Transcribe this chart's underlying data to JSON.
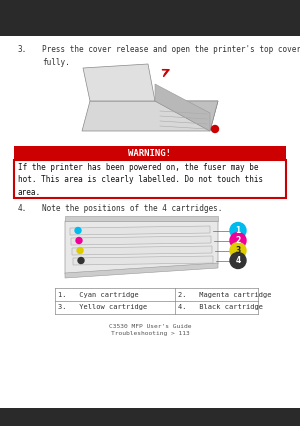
{
  "page_bg": "#c8c8c8",
  "content_bg": "#ffffff",
  "step3_label": "3.",
  "step3_text": "Press the cover release and open the printer's top cover\nfully.",
  "step4_label": "4.",
  "step4_text": "Note the positions of the 4 cartridges.",
  "warning_title": "WARNING!",
  "warning_bg": "#cc0000",
  "warning_text": "If the printer has been powered on, the fuser may be\nhot. This area is clearly labelled. Do not touch this\narea.",
  "warning_border_color": "#cc0000",
  "table_data": [
    [
      "1.   Cyan cartridge",
      "2.   Magenta cartridge"
    ],
    [
      "3.   Yellow cartridge",
      "4.   Black cartridge"
    ]
  ],
  "footer_line1": "C3530 MFP User's Guide",
  "footer_line2": "Troubleshooting > 113",
  "cartridge_colors": [
    "#00bbee",
    "#ee0099",
    "#ddcc00",
    "#333333"
  ],
  "cartridge_labels": [
    "1",
    "2",
    "3",
    "4"
  ],
  "font_size_body": 5.5,
  "font_size_warning_title": 6.5,
  "font_size_footer": 4.5,
  "font_size_table": 5.0
}
